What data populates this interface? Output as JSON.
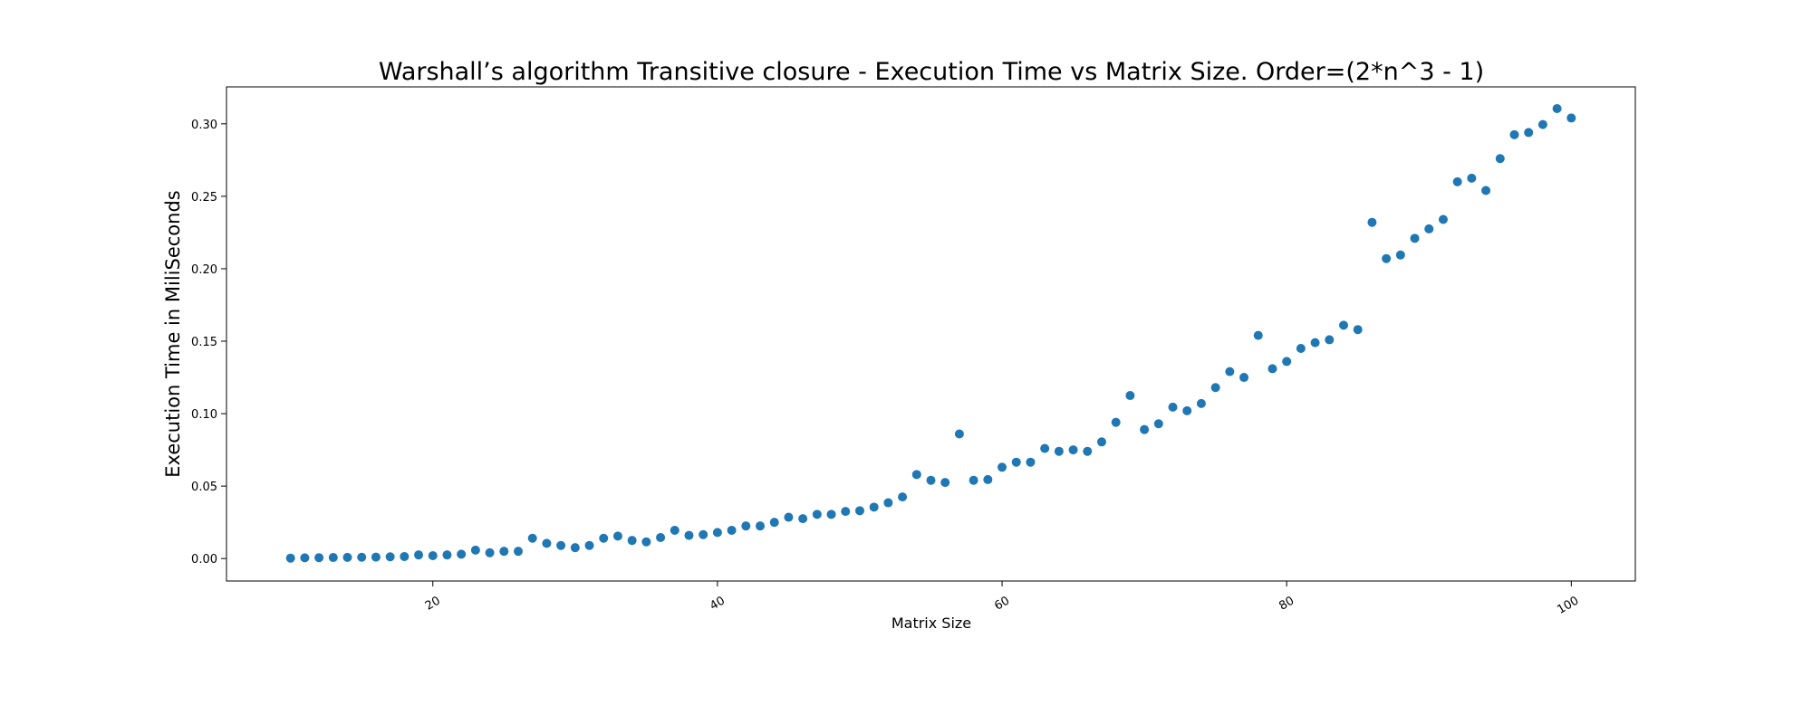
{
  "chart_data": {
    "type": "scatter",
    "title": "Warshall’s algorithm Transitive closure - Execution Time vs Matrix Size. Order=(2*n^3 - 1)",
    "xlabel": "Matrix Size",
    "ylabel": "Execution Time in MiliSeconds",
    "xlim": [
      5.5,
      104.5
    ],
    "ylim": [
      -0.0155,
      0.3255
    ],
    "xticks": [
      20,
      40,
      60,
      80,
      100
    ],
    "xtick_labels": [
      "20",
      "40",
      "60",
      "80",
      "100"
    ],
    "yticks": [
      0.0,
      0.05,
      0.1,
      0.15,
      0.2,
      0.25,
      0.3
    ],
    "ytick_labels": [
      "0.00",
      "0.05",
      "0.10",
      "0.15",
      "0.20",
      "0.25",
      "0.30"
    ],
    "grid": false,
    "marker_color": "#1f77b4",
    "x": [
      10,
      11,
      12,
      13,
      14,
      15,
      16,
      17,
      18,
      19,
      20,
      21,
      22,
      23,
      24,
      25,
      26,
      27,
      28,
      29,
      30,
      31,
      32,
      33,
      34,
      35,
      36,
      37,
      38,
      39,
      40,
      41,
      42,
      43,
      44,
      45,
      46,
      47,
      48,
      49,
      50,
      51,
      52,
      53,
      54,
      55,
      56,
      57,
      58,
      59,
      60,
      61,
      62,
      63,
      64,
      65,
      66,
      67,
      68,
      69,
      70,
      71,
      72,
      73,
      74,
      75,
      76,
      77,
      78,
      79,
      80,
      81,
      82,
      83,
      84,
      85,
      86,
      87,
      88,
      89,
      90,
      91,
      92,
      93,
      94,
      95,
      96,
      97,
      98,
      99,
      100
    ],
    "y": [
      0.0003,
      0.0005,
      0.0006,
      0.0007,
      0.0008,
      0.0009,
      0.001,
      0.0012,
      0.0014,
      0.0025,
      0.002,
      0.0025,
      0.003,
      0.0058,
      0.004,
      0.005,
      0.005,
      0.014,
      0.0105,
      0.009,
      0.0075,
      0.009,
      0.014,
      0.0155,
      0.0125,
      0.0115,
      0.0145,
      0.0195,
      0.016,
      0.0165,
      0.018,
      0.0195,
      0.0225,
      0.0225,
      0.025,
      0.0285,
      0.0275,
      0.0305,
      0.0305,
      0.0325,
      0.033,
      0.0355,
      0.0385,
      0.0425,
      0.058,
      0.054,
      0.0525,
      0.086,
      0.054,
      0.0545,
      0.063,
      0.0665,
      0.0665,
      0.076,
      0.074,
      0.075,
      0.074,
      0.0805,
      0.094,
      0.1125,
      0.089,
      0.093,
      0.1045,
      0.102,
      0.107,
      0.118,
      0.129,
      0.125,
      0.154,
      0.131,
      0.136,
      0.145,
      0.149,
      0.151,
      0.161,
      0.158,
      0.232,
      0.207,
      0.2095,
      0.221,
      0.2275,
      0.234,
      0.26,
      0.2625,
      0.254,
      0.276,
      0.2925,
      0.294,
      0.2995,
      0.3105,
      0.304
    ]
  }
}
